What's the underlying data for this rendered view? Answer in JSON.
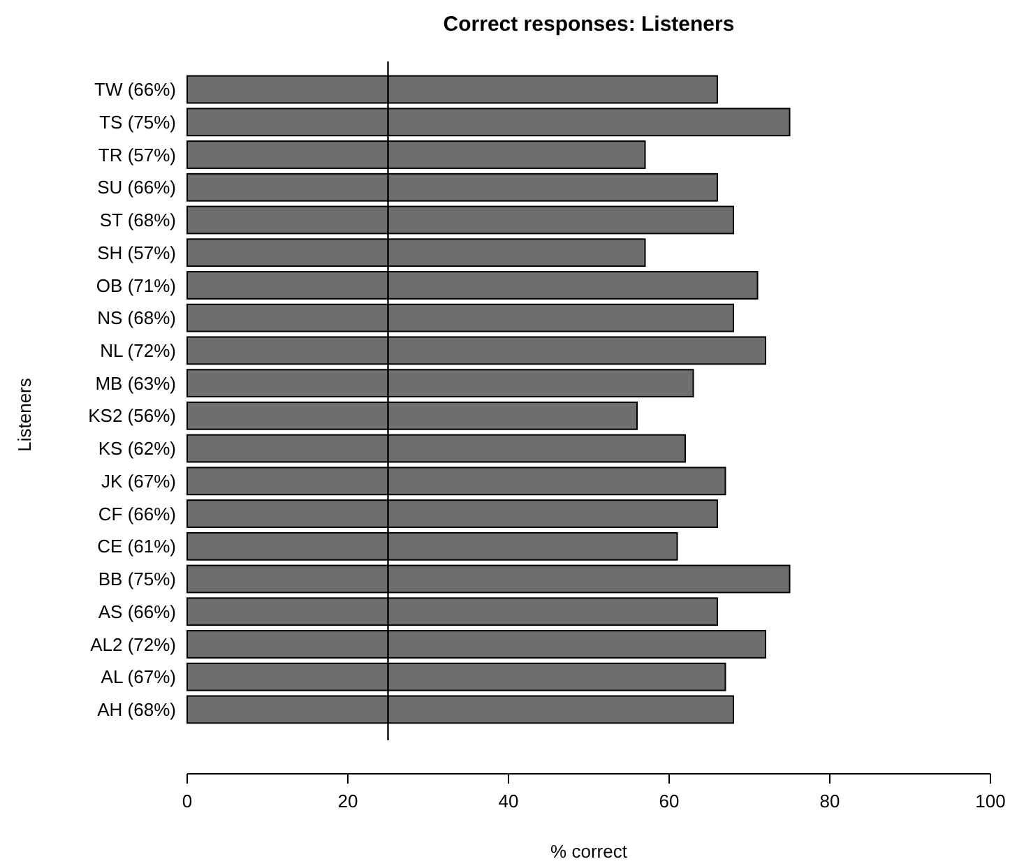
{
  "chart_data": {
    "type": "bar",
    "orientation": "horizontal",
    "title": "Correct responses: Listeners",
    "xlabel": "% correct",
    "ylabel": "Listeners",
    "categories": [
      "TW (66%)",
      "TS (75%)",
      "TR (57%)",
      "SU (66%)",
      "ST (68%)",
      "SH (57%)",
      "OB (71%)",
      "NS (68%)",
      "NL (72%)",
      "MB (63%)",
      "KS2 (56%)",
      "KS (62%)",
      "JK (67%)",
      "CF (66%)",
      "CE (61%)",
      "BB (75%)",
      "AS (66%)",
      "AL2 (72%)",
      "AL (67%)",
      "AH (68%)"
    ],
    "values": [
      66,
      75,
      57,
      66,
      68,
      57,
      71,
      68,
      72,
      63,
      56,
      62,
      67,
      66,
      61,
      75,
      66,
      72,
      67,
      68
    ],
    "color": "#6e6e6e",
    "xlim": [
      0,
      100
    ],
    "xticks": [
      0,
      20,
      40,
      60,
      80,
      100
    ],
    "ref_lines": [
      {
        "axis": "x",
        "value": 25,
        "color": "#000000"
      }
    ],
    "grid": false
  }
}
